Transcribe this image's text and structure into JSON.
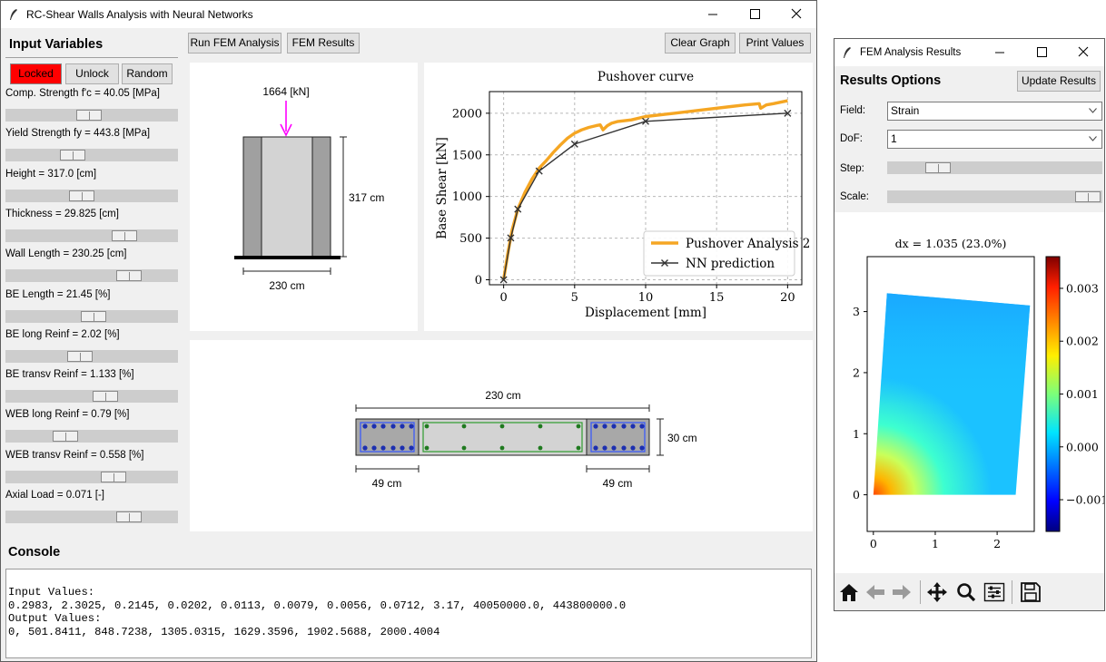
{
  "main_window": {
    "title": "RC-Shear Walls Analysis with Neural Networks",
    "input_header": "Input Variables",
    "locked_button": "Locked",
    "unlock_button": "Unlock",
    "random_button": "Random",
    "run_fem_button": "Run FEM Analysis",
    "fem_results_button": "FEM Results",
    "clear_graph_button": "Clear Graph",
    "print_values_button": "Print Values",
    "sliders": [
      {
        "label": "Comp. Strength f'c = 40.05 [MPa]",
        "value": 0.48
      },
      {
        "label": "Yield Strength fy = 443.8 [MPa]",
        "value": 0.37
      },
      {
        "label": "Height = 317.0 [cm]",
        "value": 0.43
      },
      {
        "label": "Thickness = 29.825 [cm]",
        "value": 0.72
      },
      {
        "label": "Wall Length = 230.25 [cm]",
        "value": 0.75
      },
      {
        "label": "BE Length = 21.45 [%]",
        "value": 0.51
      },
      {
        "label": "BE long Reinf = 2.02 [%]",
        "value": 0.42
      },
      {
        "label": "BE transv Reinf = 1.133 [%]",
        "value": 0.59
      },
      {
        "label": "WEB long Reinf = 0.79 [%]",
        "value": 0.32
      },
      {
        "label": "WEB transv Reinf = 0.558 [%]",
        "value": 0.65
      },
      {
        "label": "Axial Load = 0.071 [-]",
        "value": 0.75
      }
    ],
    "console_header": "Console",
    "console_lines": [
      "Input Values:",
      "0.2983, 2.3025, 0.2145, 0.0202, 0.0113, 0.0079, 0.0056, 0.0712, 3.17, 40050000.0, 443800000.0",
      "Output Values:",
      "0, 501.8411, 848.7238, 1305.0315, 1629.3596, 1902.5688, 2000.4004"
    ]
  },
  "elevation_drawing": {
    "load_label": "1664 [kN]",
    "height_label": "317 cm",
    "width_label": "230 cm"
  },
  "section_drawing": {
    "length_label": "230 cm",
    "thickness_label": "30 cm",
    "left_be_label": "49 cm",
    "right_be_label": "49 cm"
  },
  "chart_data": [
    {
      "type": "line",
      "title": "Pushover curve",
      "xlabel": "Displacement [mm]",
      "ylabel": "Base Shear [kN]",
      "xlim": [
        -1,
        21
      ],
      "ylim": [
        -60,
        2260
      ],
      "xticks": [
        0,
        5,
        10,
        15,
        20
      ],
      "yticks": [
        0,
        500,
        1000,
        1500,
        2000
      ],
      "grid": true,
      "legend": "lower-right",
      "series": [
        {
          "name": "Pushover Analysis 2",
          "color": "#f5a623",
          "x": [
            0,
            0.3,
            0.6,
            1.0,
            1.5,
            2.0,
            2.5,
            3.0,
            3.5,
            4.0,
            4.5,
            5.0,
            5.5,
            6.0,
            6.5,
            6.8,
            7.0,
            7.3,
            7.6,
            8.0,
            9.0,
            10.0,
            12.0,
            14.0,
            16.0,
            17.0,
            18.0,
            18.1,
            18.5,
            19.0,
            20.0
          ],
          "y": [
            0,
            320,
            600,
            850,
            1050,
            1210,
            1340,
            1430,
            1530,
            1620,
            1700,
            1760,
            1800,
            1830,
            1850,
            1860,
            1800,
            1850,
            1880,
            1900,
            1920,
            1960,
            2000,
            2040,
            2080,
            2100,
            2115,
            2060,
            2100,
            2115,
            2150
          ]
        },
        {
          "name": "NN prediction",
          "color": "#333333",
          "marker": "x",
          "x": [
            0,
            0.5,
            1.0,
            2.5,
            5.0,
            10.0,
            20.0
          ],
          "y": [
            0,
            501.8411,
            848.7238,
            1305.0315,
            1629.3596,
            1902.5688,
            2000.4004
          ]
        }
      ]
    },
    {
      "type": "heatmap",
      "title": "dx = 1.035 (23.0%)",
      "xlim": [
        -0.1,
        2.6
      ],
      "ylim": [
        -0.6,
        3.9
      ],
      "xticks": [
        0,
        1,
        2
      ],
      "yticks": [
        0,
        1,
        2,
        3,
        4
      ],
      "colorbar_ticks": [
        -0.001,
        0.0,
        0.001,
        0.002,
        0.003
      ],
      "colorbar_tick_labels": [
        "−0.001",
        "0.000",
        "0.001",
        "0.002",
        "0.003"
      ],
      "colorbar_range": [
        -0.0016,
        0.0036
      ],
      "colormap": "jet"
    }
  ],
  "results_window": {
    "title": "FEM Analysis Results",
    "header": "Results Options",
    "update_button": "Update Results",
    "field_label": "Field:",
    "field_value": "Strain",
    "dof_label": "DoF:",
    "dof_value": "1",
    "step_label": "Step:",
    "step_value": 0.2,
    "scale_label": "Scale:",
    "scale_value": 1.0,
    "tools": [
      "home-icon",
      "back-icon",
      "forward-icon",
      "pan-icon",
      "zoom-icon",
      "configure-icon",
      "save-icon"
    ]
  }
}
